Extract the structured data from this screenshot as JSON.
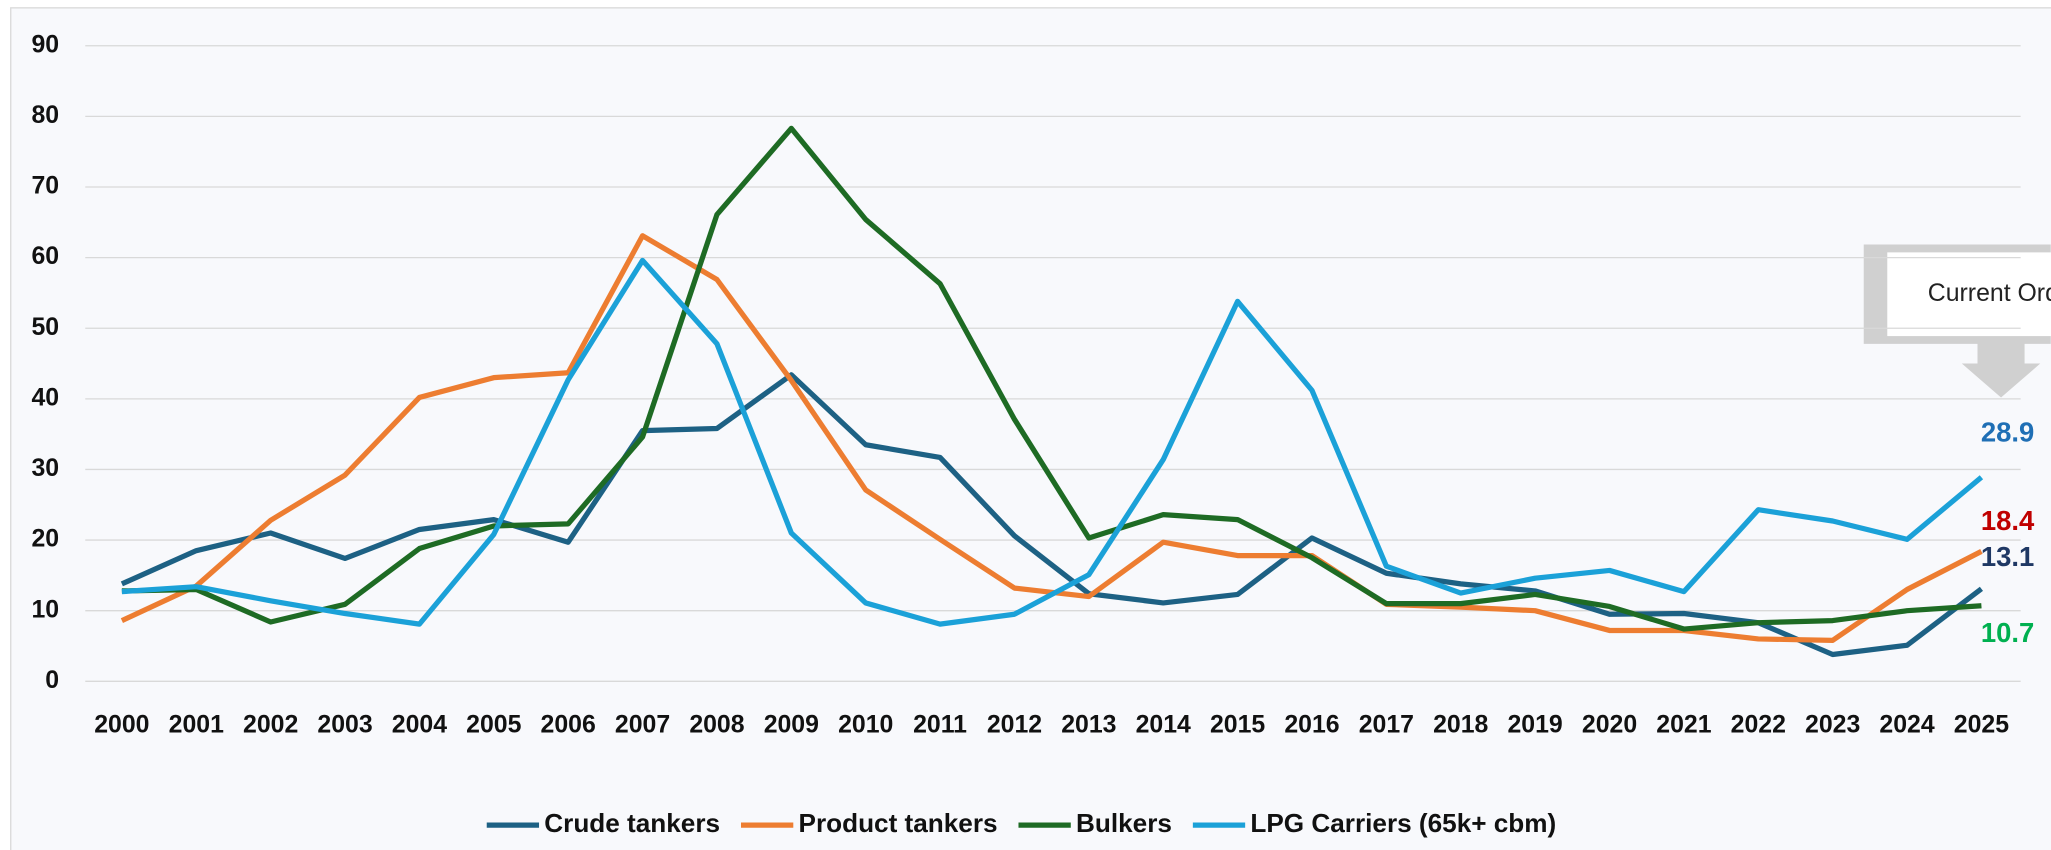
{
  "chart_data": {
    "type": "line",
    "annotation": "Current Orderbook",
    "x": [
      "2000",
      "2001",
      "2002",
      "2003",
      "2004",
      "2005",
      "2006",
      "2007",
      "2008",
      "2009",
      "2010",
      "2011",
      "2012",
      "2013",
      "2014",
      "2015",
      "2016",
      "2017",
      "2018",
      "2019",
      "2020",
      "2021",
      "2022",
      "2023",
      "2024",
      "2025"
    ],
    "ylim": [
      0,
      90
    ],
    "yticks": [
      0,
      10,
      20,
      30,
      40,
      50,
      60,
      70,
      80,
      90
    ],
    "grid": true,
    "legend": "bottom",
    "series": [
      {
        "name": "Crude tankers",
        "color": "#1d6184",
        "label_color": "#1f3864",
        "values": [
          13.8,
          18.5,
          21,
          17.4,
          21.5,
          22.9,
          19.7,
          35.5,
          35.8,
          43.4,
          33.5,
          31.7,
          20.6,
          12.4,
          11.1,
          12.3,
          20.3,
          15.3,
          13.8,
          12.8,
          9.5,
          9.6,
          8.3,
          3.8,
          5.1,
          13.1
        ]
      },
      {
        "name": "Product tankers",
        "color": "#ed7d31",
        "label_color": "#c00000",
        "values": [
          8.6,
          13.5,
          22.8,
          29.2,
          40.2,
          43,
          43.7,
          63.1,
          56.9,
          42.6,
          27.1,
          20.1,
          13.2,
          12,
          19.7,
          17.8,
          17.8,
          10.9,
          10.5,
          10,
          7.2,
          7.2,
          6,
          5.8,
          13,
          18.4
        ]
      },
      {
        "name": "Bulkers",
        "color": "#1e6b24",
        "label_color": "#00b050",
        "values": [
          12.8,
          13,
          8.4,
          10.9,
          18.8,
          22,
          22.3,
          34.6,
          66.1,
          78.3,
          65.4,
          56.3,
          37.1,
          20.3,
          23.6,
          22.9,
          17.5,
          11,
          11,
          12.3,
          10.6,
          7.4,
          8.3,
          8.6,
          10,
          10.7
        ]
      },
      {
        "name": "LPG Carriers (65k+ cbm)",
        "color": "#1ba1d8",
        "label_color": "#1f6fb5",
        "values": [
          12.7,
          13.4,
          11.4,
          9.6,
          8.1,
          20.8,
          42.7,
          59.6,
          47.8,
          21,
          11.1,
          8.1,
          9.5,
          15.1,
          31.4,
          53.8,
          41.2,
          16.3,
          12.5,
          14.6,
          15.7,
          12.7,
          24.3,
          22.7,
          20.1,
          28.9
        ]
      }
    ]
  }
}
